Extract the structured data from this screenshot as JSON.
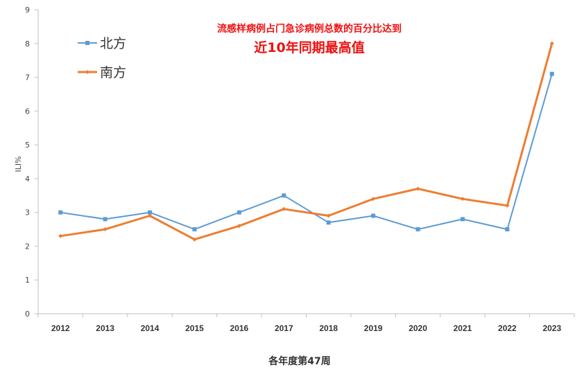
{
  "chart_data": {
    "type": "line",
    "title": "流感样病例占门急诊病例总数的百分比达到",
    "subtitle": "近10年同期最高值",
    "xlabel": "各年度第47周",
    "ylabel": "ILI%",
    "ylim": [
      0,
      9
    ],
    "yticks": [
      "0",
      "1",
      "2",
      "3",
      "4",
      "5",
      "6",
      "7",
      "8",
      "9"
    ],
    "categories": [
      "2012",
      "2013",
      "2014",
      "2015",
      "2016",
      "2017",
      "2018",
      "2019",
      "2020",
      "2021",
      "2022",
      "2023"
    ],
    "series": [
      {
        "name": "北方",
        "color": "#5b9bd5",
        "marker": "square",
        "values": [
          3.0,
          2.8,
          3.0,
          2.5,
          3.0,
          3.5,
          2.7,
          2.9,
          2.5,
          2.8,
          2.5,
          7.1
        ]
      },
      {
        "name": "南方",
        "color": "#ed7d31",
        "marker": "diamond",
        "values": [
          2.3,
          2.5,
          2.9,
          2.2,
          2.6,
          3.1,
          2.9,
          3.4,
          3.7,
          3.4,
          3.2,
          8.0
        ]
      }
    ],
    "grid": false,
    "legend": "top-left"
  },
  "colors": {
    "title": "#ee1111",
    "axis": "#bfbfbf"
  }
}
